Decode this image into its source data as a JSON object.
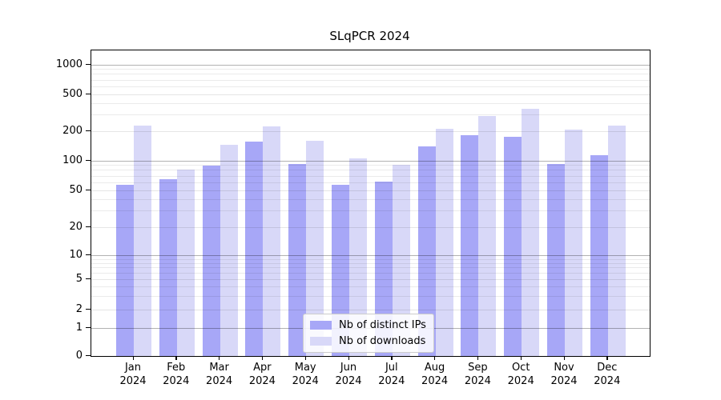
{
  "chart_data": {
    "type": "bar",
    "title": "SLqPCR 2024",
    "categories": [
      "Jan",
      "Feb",
      "Mar",
      "Apr",
      "May",
      "Jun",
      "Jul",
      "Aug",
      "Sep",
      "Oct",
      "Nov",
      "Dec"
    ],
    "year": "2024",
    "series": [
      {
        "name": "Nb of distinct IPs",
        "color": "#a7a7f7",
        "values": [
          57,
          65,
          90,
          158,
          93,
          57,
          62,
          141,
          183,
          177,
          92,
          115
        ]
      },
      {
        "name": "Nb of downloads",
        "color": "#d8d8f8",
        "values": [
          234,
          82,
          147,
          228,
          162,
          105,
          91,
          213,
          293,
          352,
          210,
          231
        ]
      }
    ],
    "yscale": "symlog",
    "ylim": [
      0,
      1400
    ],
    "yticks": [
      0,
      1,
      2,
      5,
      10,
      20,
      50,
      100,
      200,
      500,
      1000
    ],
    "major_gridlines": [
      1,
      10,
      100,
      1000
    ],
    "mid_gridlines": [
      2,
      5,
      20,
      50,
      200,
      500
    ],
    "minor_gridlines": [
      3,
      4,
      6,
      7,
      8,
      9,
      30,
      40,
      60,
      70,
      80,
      90,
      300,
      400,
      600,
      700,
      800,
      900
    ],
    "grid": true,
    "legend_position": "lower center",
    "xlabel": "",
    "ylabel": ""
  },
  "colors": {
    "background": "#ffffff",
    "spine": "#000000",
    "legend_border": "#cccccc"
  }
}
